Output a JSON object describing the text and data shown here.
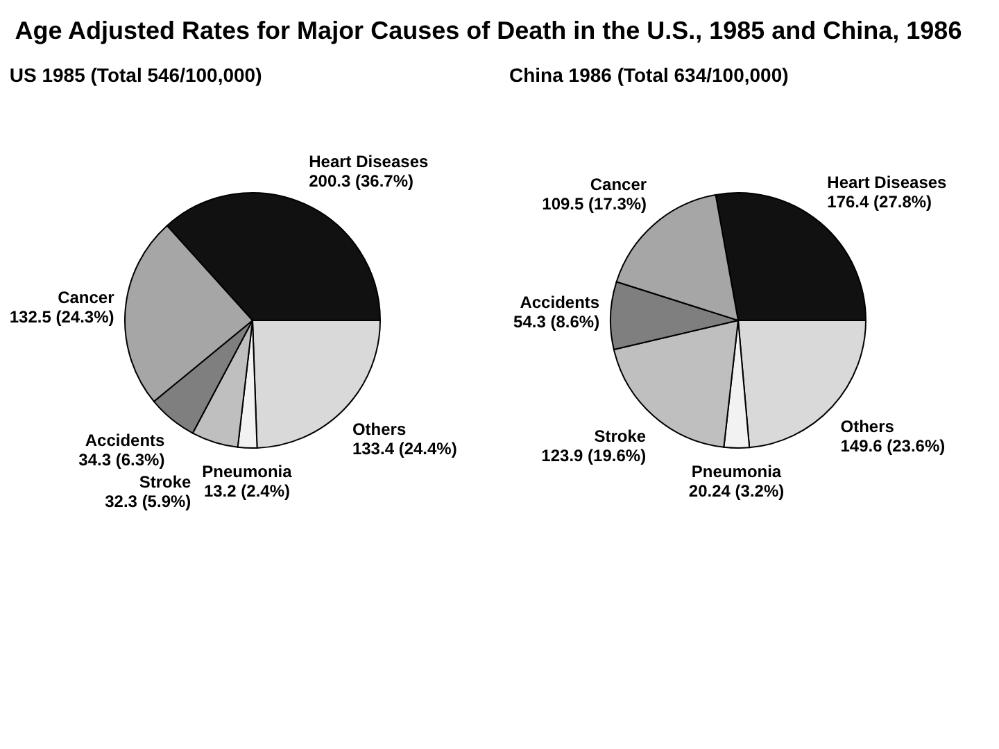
{
  "chart_data": [
    {
      "type": "pie",
      "title": "US 1985 (Total 546/100,000)",
      "annotations": [
        "Age Adjusted Rates for Major Causes of Death in the U.S., 1985 and China, 1986"
      ],
      "categories": [
        "Heart Diseases",
        "Others",
        "Pneumonia",
        "Stroke",
        "Accidents",
        "Cancer"
      ],
      "values": [
        200.3,
        133.4,
        13.2,
        32.3,
        34.3,
        132.5
      ],
      "value_labels": [
        "200.3 (36.7%)",
        "133.4 (24.4%)",
        "13.2 (2.4%)",
        "32.3 (5.9%)",
        "34.3 (6.3%)",
        "132.5 (24.3%)"
      ],
      "colors": [
        "#111111",
        "#d9d9d9",
        "#f2f2f2",
        "#bfbfbf",
        "#7f7f7f",
        "#a6a6a6"
      ]
    },
    {
      "type": "pie",
      "title": "China 1986 (Total 634/100,000)",
      "categories": [
        "Heart Diseases",
        "Others",
        "Pneumonia",
        "Stroke",
        "Accidents",
        "Cancer"
      ],
      "values": [
        176.4,
        149.6,
        20.24,
        123.9,
        54.3,
        109.5
      ],
      "value_labels": [
        "176.4 (27.8%)",
        "149.6 (23.6%)",
        "20.24 (3.2%)",
        "123.9 (19.6%)",
        "54.3 (8.6%)",
        "109.5 (17.3%)"
      ],
      "colors": [
        "#111111",
        "#d9d9d9",
        "#f2f2f2",
        "#bfbfbf",
        "#7f7f7f",
        "#a6a6a6"
      ]
    }
  ]
}
